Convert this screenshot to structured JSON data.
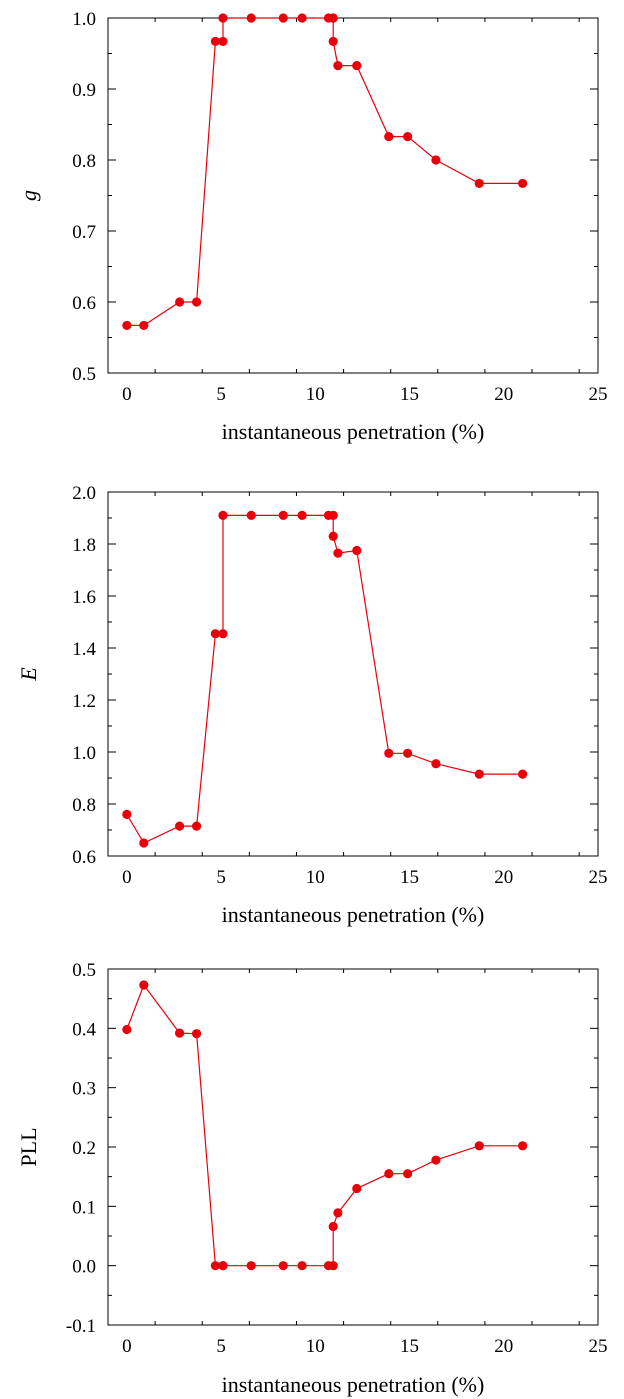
{
  "chart_data": [
    {
      "type": "line",
      "xlabel": "instantaneous penetration (%)",
      "ylabel": "g",
      "ylabel_italic": true,
      "xlim": [
        -1,
        25
      ],
      "ylim": [
        0.5,
        1.0
      ],
      "x_ticks": [
        0,
        5,
        10,
        15,
        20,
        25
      ],
      "x_tick_labels": [
        "0",
        "5",
        "10",
        "15",
        "20",
        "25"
      ],
      "y_ticks": [
        0.5,
        0.6,
        0.7,
        0.8,
        0.9,
        1.0
      ],
      "y_tick_labels": [
        "0.5",
        "0.6",
        "0.7",
        "0.8",
        "0.9",
        "1.0"
      ],
      "grid": false,
      "color": "#e8000b",
      "series": [
        {
          "x": [
            0,
            0.9,
            2.8,
            3.7,
            4.7,
            5.1,
            5.1,
            6.6,
            8.3,
            9.3,
            10.7,
            10.95,
            10.95,
            11.2,
            12.2,
            13.9,
            14.9,
            16.4,
            18.7,
            21.0
          ],
          "y": [
            0.567,
            0.567,
            0.6,
            0.6,
            0.967,
            0.967,
            1.0,
            1.0,
            1.0,
            1.0,
            1.0,
            1.0,
            0.967,
            0.933,
            0.933,
            0.833,
            0.833,
            0.8,
            0.767,
            0.767
          ]
        }
      ]
    },
    {
      "type": "line",
      "xlabel": "instantaneous penetration (%)",
      "ylabel": "E",
      "ylabel_italic": true,
      "xlim": [
        -1,
        25
      ],
      "ylim": [
        0.6,
        2.0
      ],
      "x_ticks": [
        0,
        5,
        10,
        15,
        20,
        25
      ],
      "x_tick_labels": [
        "0",
        "5",
        "10",
        "15",
        "20",
        "25"
      ],
      "y_ticks": [
        0.6,
        0.8,
        1.0,
        1.2,
        1.4,
        1.6,
        1.8,
        2.0
      ],
      "y_tick_labels": [
        "0.6",
        "0.8",
        "1.0",
        "1.2",
        "1.4",
        "1.6",
        "1.8",
        "2.0"
      ],
      "grid": false,
      "color": "#e8000b",
      "series": [
        {
          "x": [
            0,
            0.9,
            2.8,
            3.7,
            4.7,
            5.1,
            5.1,
            6.6,
            8.3,
            9.3,
            10.7,
            10.95,
            10.95,
            11.2,
            12.2,
            13.9,
            14.9,
            16.4,
            18.7,
            21.0
          ],
          "y": [
            0.76,
            0.65,
            0.715,
            0.715,
            1.455,
            1.455,
            1.91,
            1.91,
            1.91,
            1.91,
            1.91,
            1.91,
            1.83,
            1.765,
            1.775,
            0.995,
            0.995,
            0.955,
            0.915,
            0.915
          ]
        }
      ]
    },
    {
      "type": "line",
      "xlabel": "instantaneous penetration (%)",
      "ylabel": "PLL",
      "ylabel_italic": false,
      "xlim": [
        -1,
        25
      ],
      "ylim": [
        -0.1,
        0.5
      ],
      "x_ticks": [
        0,
        5,
        10,
        15,
        20,
        25
      ],
      "x_tick_labels": [
        "0",
        "5",
        "10",
        "15",
        "20",
        "25"
      ],
      "y_ticks": [
        -0.1,
        0.0,
        0.1,
        0.2,
        0.3,
        0.4,
        0.5
      ],
      "y_tick_labels": [
        "-0.1",
        "0.0",
        "0.1",
        "0.2",
        "0.3",
        "0.4",
        "0.5"
      ],
      "grid": false,
      "color": "#e8000b",
      "series": [
        {
          "x": [
            0,
            0.9,
            2.8,
            3.7,
            4.7,
            5.1,
            5.1,
            6.6,
            8.3,
            9.3,
            10.7,
            10.95,
            10.95,
            11.2,
            12.2,
            13.9,
            14.9,
            16.4,
            18.7,
            21.0
          ],
          "y": [
            0.398,
            0.473,
            0.392,
            0.391,
            0.0,
            0.0,
            0.0,
            0.0,
            0.0,
            0.0,
            0.0,
            0.0,
            0.066,
            0.089,
            0.13,
            0.155,
            0.155,
            0.178,
            0.202,
            0.202
          ]
        }
      ]
    }
  ]
}
